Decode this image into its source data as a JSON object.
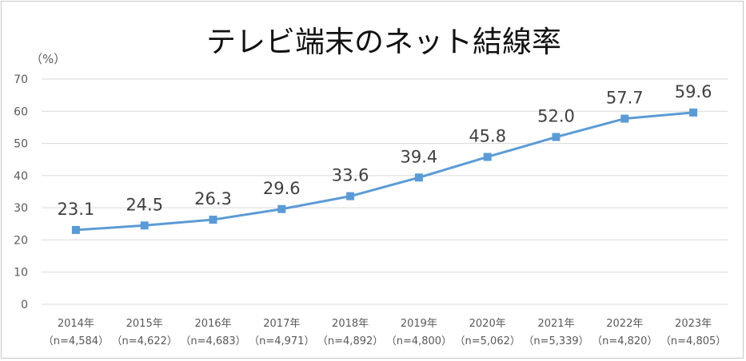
{
  "chart_data": {
    "type": "line",
    "title": "テレビ端末のネット結線率",
    "ylabel": "（%）",
    "xlabel": "",
    "ylim": [
      0,
      70
    ],
    "yticks": [
      0,
      10,
      20,
      30,
      40,
      50,
      60,
      70
    ],
    "grid": true,
    "legend": "none",
    "categories": [
      {
        "year": "2014年",
        "n": "（n=4,584）"
      },
      {
        "year": "2015年",
        "n": "（n=4,622）"
      },
      {
        "year": "2016年",
        "n": "（n=4,683）"
      },
      {
        "year": "2017年",
        "n": "（n=4,971）"
      },
      {
        "year": "2018年",
        "n": "（n=4,892）"
      },
      {
        "year": "2019年",
        "n": "（n=4,800）"
      },
      {
        "year": "2020年",
        "n": "（n=5,062）"
      },
      {
        "year": "2021年",
        "n": "（n=5,339）"
      },
      {
        "year": "2022年",
        "n": "（n=4,820）"
      },
      {
        "year": "2023年",
        "n": "（n=4,805）"
      }
    ],
    "series": [
      {
        "values": [
          23.1,
          24.5,
          26.3,
          29.6,
          33.6,
          39.4,
          45.8,
          52.0,
          57.7,
          59.6
        ],
        "labels": [
          "23.1",
          "24.5",
          "26.3",
          "29.6",
          "33.6",
          "39.4",
          "45.8",
          "52.0",
          "57.7",
          "59.6"
        ],
        "color": "#5b9bd5"
      }
    ]
  }
}
